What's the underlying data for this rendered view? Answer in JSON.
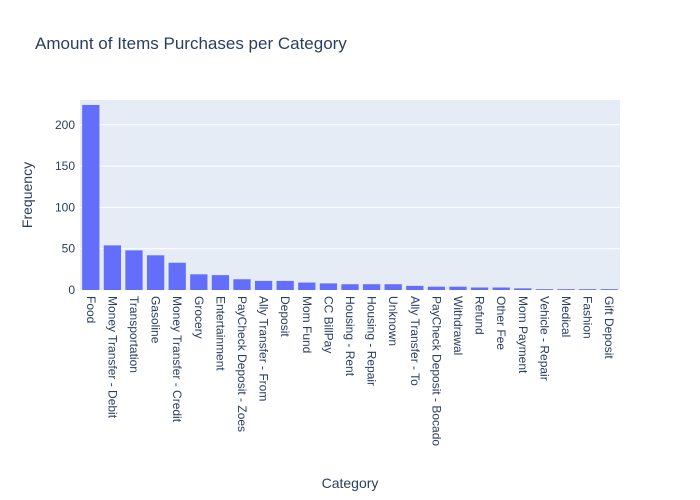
{
  "chart_data": {
    "type": "bar",
    "title": "Amount of Items Purchases per Category",
    "xlabel": "Category",
    "ylabel": "Frequency",
    "ylim": [
      0,
      230
    ],
    "yticks": [
      0,
      50,
      100,
      150,
      200
    ],
    "grid": true,
    "legend": "none",
    "categories": [
      "Food",
      "Money Transfer - Debit",
      "Transportation",
      "Gasoline",
      "Money Transfer - Credit",
      "Grocery",
      "Entertainment",
      "PayCheck Deposit - Zoes",
      "Ally Transfer - From",
      "Deposit",
      "Mom Fund",
      "CC BillPay",
      "Housing - Rent",
      "Housing - Repair",
      "Unknown",
      "Ally Transfer - To",
      "PayCheck Deposit - Bocado",
      "Withdrawal",
      "Refund",
      "Other Fee",
      "Mom Payment",
      "Vehicle - Repair",
      "Medical",
      "Fashion",
      "Gift Deposit"
    ],
    "values": [
      224,
      54,
      48,
      42,
      33,
      19,
      18,
      13,
      11,
      11,
      9,
      8,
      7,
      7,
      7,
      5,
      4,
      4,
      3,
      3,
      2,
      1,
      1,
      1,
      1
    ],
    "colors": {
      "bar": "#636efa",
      "plot_bg": "#e5ecf6",
      "grid": "#ffffff",
      "text": "#2a3f5f"
    }
  }
}
